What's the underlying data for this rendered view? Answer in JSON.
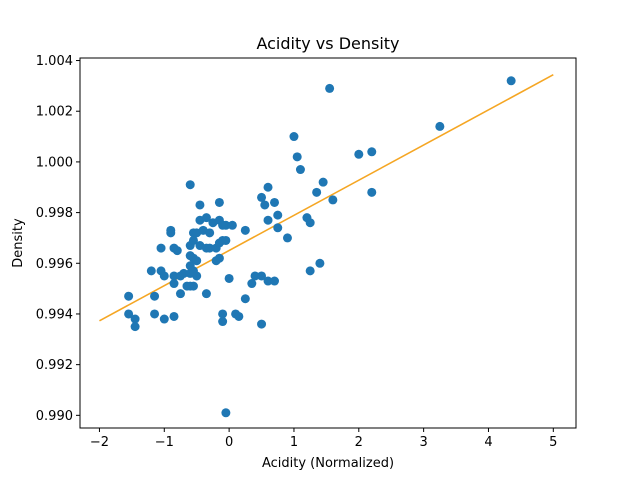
{
  "chart_data": {
    "type": "scatter",
    "title": "Acidity vs Density",
    "xlabel": "Acidity (Normalized)",
    "ylabel": "Density",
    "xlim": [
      -2.3,
      5.35
    ],
    "ylim": [
      0.9895,
      1.0041
    ],
    "xticks": [
      -2,
      -1,
      0,
      1,
      2,
      3,
      4,
      5
    ],
    "xtick_labels": [
      "−2",
      "−1",
      "0",
      "1",
      "2",
      "3",
      "4",
      "5"
    ],
    "yticks": [
      0.99,
      0.992,
      0.994,
      0.996,
      0.998,
      1.0,
      1.002,
      1.004
    ],
    "ytick_labels": [
      "0.990",
      "0.992",
      "0.994",
      "0.996",
      "0.998",
      "1.000",
      "1.002",
      "1.004"
    ],
    "grid": false,
    "colors": {
      "points": "#1f77b4",
      "fit_line": "#f5a623"
    },
    "series": [
      {
        "type": "scatter",
        "points": [
          [
            -1.55,
            0.9947
          ],
          [
            -1.55,
            0.994
          ],
          [
            -1.45,
            0.9938
          ],
          [
            -1.45,
            0.9935
          ],
          [
            -1.2,
            0.9957
          ],
          [
            -1.15,
            0.9947
          ],
          [
            -1.15,
            0.994
          ],
          [
            -1.05,
            0.9966
          ],
          [
            -1.05,
            0.9957
          ],
          [
            -1.0,
            0.9955
          ],
          [
            -1.0,
            0.9938
          ],
          [
            -0.9,
            0.9973
          ],
          [
            -0.9,
            0.9972
          ],
          [
            -0.85,
            0.9966
          ],
          [
            -0.85,
            0.9955
          ],
          [
            -0.85,
            0.9952
          ],
          [
            -0.85,
            0.9939
          ],
          [
            -0.8,
            0.9965
          ],
          [
            -0.75,
            0.9955
          ],
          [
            -0.75,
            0.9948
          ],
          [
            -0.7,
            0.9956
          ],
          [
            -0.65,
            0.9951
          ],
          [
            -0.6,
            0.9991
          ],
          [
            -0.6,
            0.9967
          ],
          [
            -0.6,
            0.9963
          ],
          [
            -0.6,
            0.9959
          ],
          [
            -0.6,
            0.9956
          ],
          [
            -0.6,
            0.9951
          ],
          [
            -0.55,
            0.9972
          ],
          [
            -0.55,
            0.9969
          ],
          [
            -0.55,
            0.9962
          ],
          [
            -0.55,
            0.9957
          ],
          [
            -0.55,
            0.9951
          ],
          [
            -0.5,
            0.9972
          ],
          [
            -0.5,
            0.9961
          ],
          [
            -0.5,
            0.9955
          ],
          [
            -0.45,
            0.9983
          ],
          [
            -0.45,
            0.9977
          ],
          [
            -0.45,
            0.9967
          ],
          [
            -0.4,
            0.9973
          ],
          [
            -0.35,
            0.9978
          ],
          [
            -0.35,
            0.9966
          ],
          [
            -0.35,
            0.9948
          ],
          [
            -0.3,
            0.9972
          ],
          [
            -0.3,
            0.9966
          ],
          [
            -0.25,
            0.9976
          ],
          [
            -0.2,
            0.9966
          ],
          [
            -0.2,
            0.9961
          ],
          [
            -0.15,
            0.9984
          ],
          [
            -0.15,
            0.9977
          ],
          [
            -0.15,
            0.9968
          ],
          [
            -0.15,
            0.9962
          ],
          [
            -0.1,
            0.9975
          ],
          [
            -0.1,
            0.9969
          ],
          [
            -0.1,
            0.994
          ],
          [
            -0.1,
            0.9937
          ],
          [
            -0.05,
            0.9975
          ],
          [
            -0.05,
            0.9969
          ],
          [
            -0.05,
            0.9901
          ],
          [
            0.0,
            0.9954
          ],
          [
            0.05,
            0.9975
          ],
          [
            0.1,
            0.994
          ],
          [
            0.15,
            0.9939
          ],
          [
            0.25,
            0.9973
          ],
          [
            0.25,
            0.9946
          ],
          [
            0.35,
            0.9952
          ],
          [
            0.4,
            0.9955
          ],
          [
            0.5,
            0.9986
          ],
          [
            0.5,
            0.9955
          ],
          [
            0.5,
            0.9936
          ],
          [
            0.55,
            0.9983
          ],
          [
            0.6,
            0.999
          ],
          [
            0.6,
            0.9977
          ],
          [
            0.6,
            0.9953
          ],
          [
            0.7,
            0.9953
          ],
          [
            0.7,
            0.9984
          ],
          [
            0.75,
            0.9974
          ],
          [
            0.75,
            0.9979
          ],
          [
            0.9,
            0.997
          ],
          [
            1.0,
            1.001
          ],
          [
            1.05,
            1.0002
          ],
          [
            1.1,
            0.9997
          ],
          [
            1.2,
            0.9978
          ],
          [
            1.25,
            0.9976
          ],
          [
            1.25,
            0.9957
          ],
          [
            1.35,
            0.9988
          ],
          [
            1.4,
            0.996
          ],
          [
            1.45,
            0.9992
          ],
          [
            1.55,
            1.0029
          ],
          [
            1.6,
            0.9985
          ],
          [
            2.0,
            1.0003
          ],
          [
            2.2,
            1.0004
          ],
          [
            2.2,
            0.9988
          ],
          [
            3.25,
            1.0014
          ],
          [
            4.35,
            1.0032
          ]
        ]
      },
      {
        "type": "line",
        "x": [
          -2,
          5
        ],
        "y": [
          0.99373,
          1.00344
        ]
      }
    ]
  }
}
